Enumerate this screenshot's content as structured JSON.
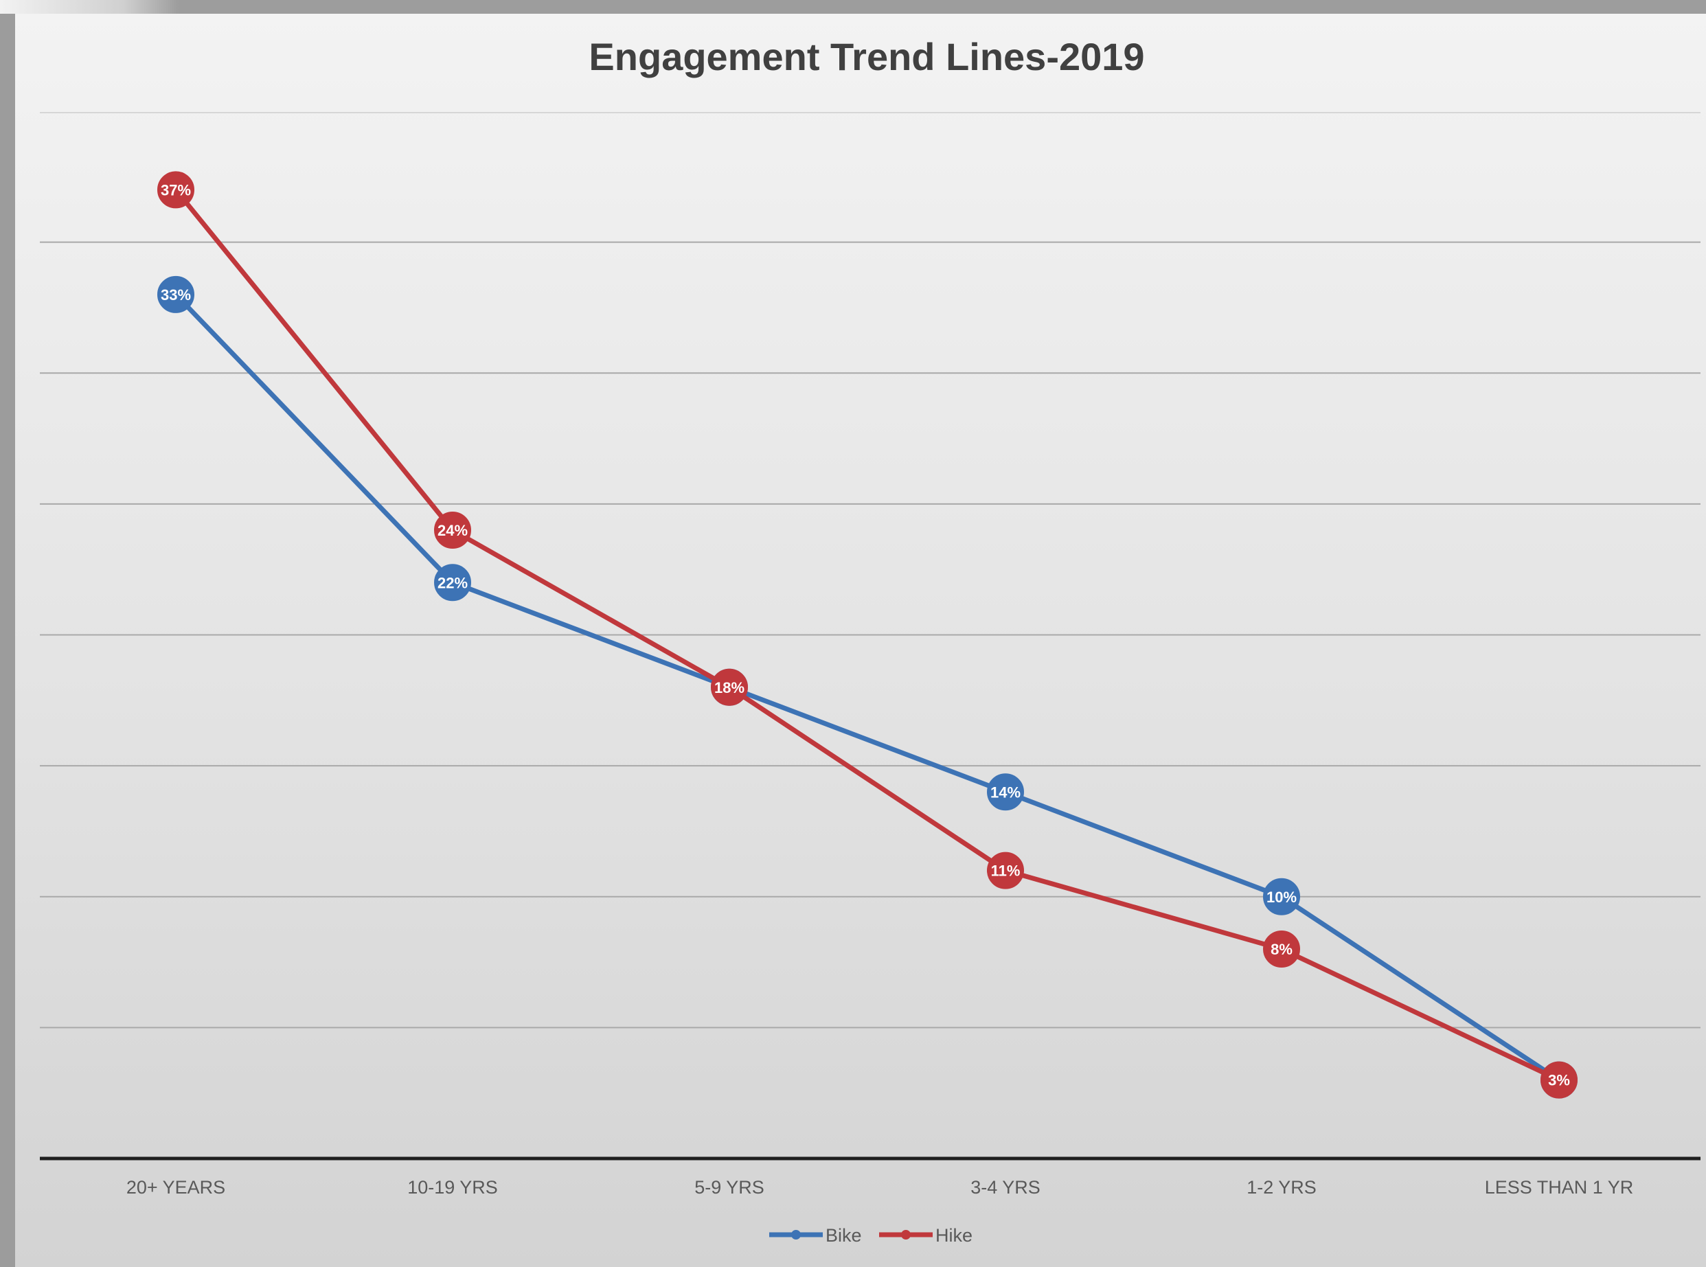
{
  "chart_data": {
    "type": "line",
    "title": "Engagement Trend Lines-2019",
    "xlabel": "",
    "ylabel": "",
    "categories": [
      "20+ YEARS",
      "10-19 YRS",
      "5-9 YRS",
      "3-4 YRS",
      "1-2 YRS",
      "LESS THAN 1 YR"
    ],
    "series": [
      {
        "name": "Bike",
        "color": "#3d73b5",
        "values": [
          33,
          22,
          18,
          14,
          10,
          3
        ],
        "labels": [
          "33%",
          "22%",
          "18%",
          "14%",
          "10%",
          "3%"
        ]
      },
      {
        "name": "Hike",
        "color": "#c0383c",
        "values": [
          37,
          24,
          18,
          11,
          8,
          3
        ],
        "labels": [
          "37%",
          "24%",
          "18%",
          "11%",
          "8%",
          "3%"
        ]
      }
    ],
    "ylim": [
      0,
      40
    ],
    "y_tick_labels_shown": false,
    "grid": true,
    "legend_position": "bottom"
  }
}
